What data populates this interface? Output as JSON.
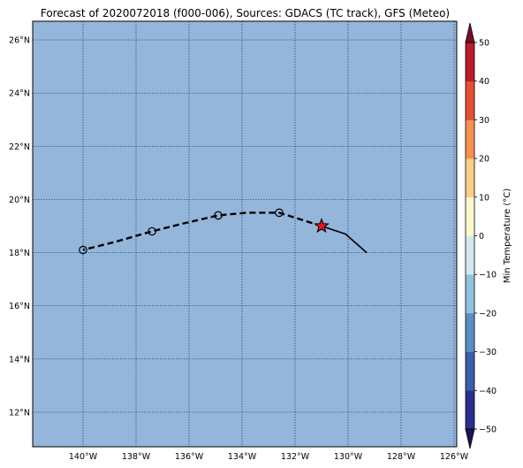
{
  "title": "Forecast of 2020072018 (f000-006), Sources: GDACS (TC track), GFS (Meteo)",
  "colors": {
    "ocean": "#94b6da",
    "grid": "#1f3a6b",
    "track": "#000000",
    "current_marker": "#e0141b"
  },
  "map": {
    "lon_range": [
      -141.9,
      -125.9
    ],
    "lat_range": [
      10.7,
      26.7
    ],
    "lon_ticks": [
      -140,
      -138,
      -136,
      -134,
      -132,
      -130,
      -128,
      -126
    ],
    "lon_tick_labels": [
      "140°W",
      "138°W",
      "136°W",
      "134°W",
      "132°W",
      "130°W",
      "128°W",
      "126°W"
    ],
    "lat_ticks": [
      12,
      14,
      16,
      18,
      20,
      22,
      24,
      26
    ],
    "lat_tick_labels": [
      "12°N",
      "14°N",
      "16°N",
      "18°N",
      "20°N",
      "22°N",
      "24°N",
      "26°N"
    ]
  },
  "track": {
    "observed": [
      {
        "lon": -129.3,
        "lat": 18.0
      },
      {
        "lon": -130.1,
        "lat": 18.7
      },
      {
        "lon": -131.0,
        "lat": 19.0
      }
    ],
    "forecast": [
      {
        "lon": -131.0,
        "lat": 19.0
      },
      {
        "lon": -132.6,
        "lat": 19.5
      },
      {
        "lon": -133.8,
        "lat": 19.5
      },
      {
        "lon": -134.9,
        "lat": 19.4
      },
      {
        "lon": -136.2,
        "lat": 19.1
      },
      {
        "lon": -137.4,
        "lat": 18.8
      },
      {
        "lon": -138.8,
        "lat": 18.4
      },
      {
        "lon": -140.0,
        "lat": 18.1
      }
    ],
    "forecast_points": [
      {
        "lon": -132.6,
        "lat": 19.5
      },
      {
        "lon": -134.9,
        "lat": 19.4
      },
      {
        "lon": -137.4,
        "lat": 18.8
      },
      {
        "lon": -140.0,
        "lat": 18.1
      }
    ],
    "current_position": {
      "lon": -131.0,
      "lat": 19.0
    }
  },
  "colorbar": {
    "label": "Min Temperature (°C)",
    "levels": [
      -50,
      -40,
      -30,
      -20,
      -10,
      0,
      10,
      20,
      30,
      40,
      50
    ],
    "tick_labels": [
      "−50",
      "−40",
      "−30",
      "−20",
      "−10",
      "0",
      "10",
      "20",
      "30",
      "40",
      "50"
    ],
    "colors": [
      "#2b2f8f",
      "#3b5fa8",
      "#5a8fc2",
      "#93c2de",
      "#d2e9f2",
      "#fdf8cc",
      "#fdcd88",
      "#f79150",
      "#e54f33",
      "#be1a2a"
    ],
    "under_color": "#1a1650",
    "over_color": "#7a0e26"
  }
}
